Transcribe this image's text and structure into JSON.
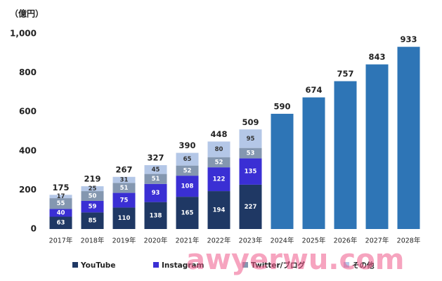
{
  "chart_data": {
    "type": "stacked_bar",
    "y_unit": "（億円）",
    "categories": [
      "2017年",
      "2018年",
      "2019年",
      "2020年",
      "2021年",
      "2022年",
      "2023年",
      "2024年",
      "2025年",
      "2026年",
      "2027年",
      "2028年"
    ],
    "series": [
      {
        "name": "YouTube",
        "color": "#1f3864",
        "label_color": "#ffffff",
        "values": [
          63,
          85,
          110,
          138,
          165,
          194,
          227,
          null,
          null,
          null,
          null,
          null
        ]
      },
      {
        "name": "Instagram",
        "color": "#3a2fd4",
        "label_color": "#ffffff",
        "values": [
          40,
          59,
          75,
          93,
          108,
          122,
          135,
          null,
          null,
          null,
          null,
          null
        ]
      },
      {
        "name": "Twitter/ブログ",
        "color": "#8497b0",
        "label_color": "#ffffff",
        "values": [
          55,
          50,
          51,
          51,
          52,
          52,
          53,
          null,
          null,
          null,
          null,
          null
        ]
      },
      {
        "name": "その他",
        "color": "#b4c7e7",
        "label_color": "#333333",
        "values": [
          17,
          25,
          31,
          45,
          65,
          80,
          95,
          null,
          null,
          null,
          null,
          null
        ]
      }
    ],
    "totals": {
      "color": "#2e75b6",
      "values": [
        175,
        219,
        267,
        327,
        390,
        448,
        509,
        590,
        674,
        757,
        843,
        933
      ]
    },
    "ylim": [
      0,
      1000
    ],
    "yticks": [
      0,
      200,
      400,
      600,
      800,
      {
        "value": 1000,
        "label": "1,000"
      }
    ],
    "watermark": "awyerwu.com"
  }
}
